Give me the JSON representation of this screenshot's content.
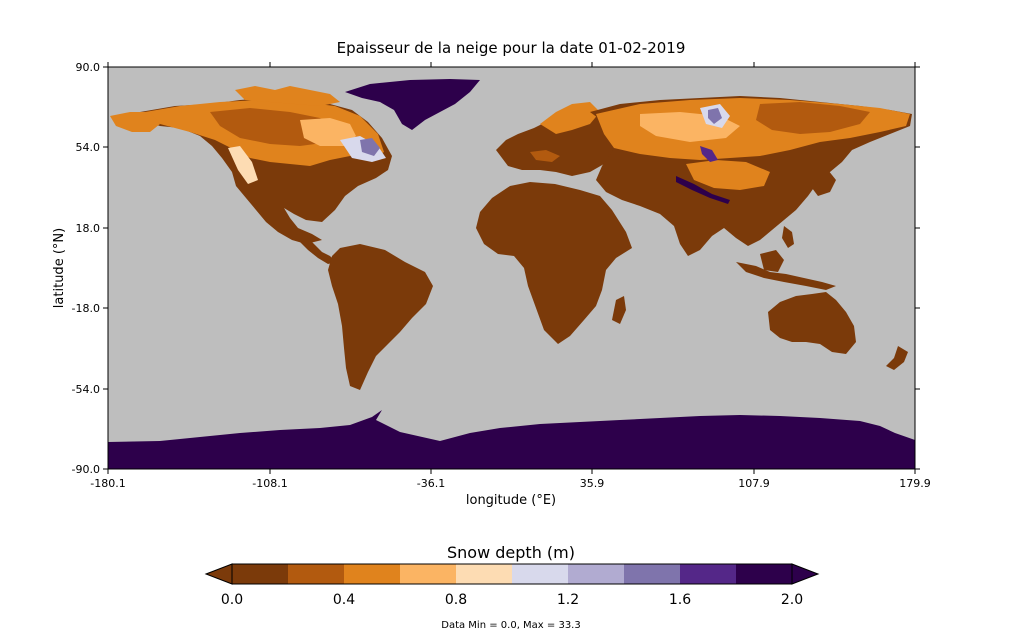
{
  "title": "Epaisseur de la neige pour la date 01-02-2019",
  "xlabel": "longitude (°E)",
  "ylabel": "latitude (°N)",
  "x_ticks": [
    "-180.1",
    "-108.1",
    "-36.1",
    "35.9",
    "107.9",
    "179.9"
  ],
  "y_ticks": [
    "90.0",
    "54.0",
    "18.0",
    "-18.0",
    "-54.0",
    "-90.0"
  ],
  "colorbar": {
    "title": "Snow depth (m)",
    "ticks": [
      "0.0",
      "0.4",
      "0.8",
      "1.2",
      "1.6",
      "2.0"
    ],
    "colors": [
      "#7b3a0a",
      "#b25a0f",
      "#e0831d",
      "#fbb463",
      "#fddcb3",
      "#d8d9ec",
      "#b1abd1",
      "#7f74ac",
      "#542788",
      "#2d004b"
    ],
    "under_color": "#7b3a0a",
    "over_color": "#2d004b"
  },
  "footer": "Data Min = 0.0, Max = 33.3",
  "colors": {
    "ocean": "#bebebe",
    "land_base": "#7b3a0a",
    "ice": "#2d004b"
  }
}
